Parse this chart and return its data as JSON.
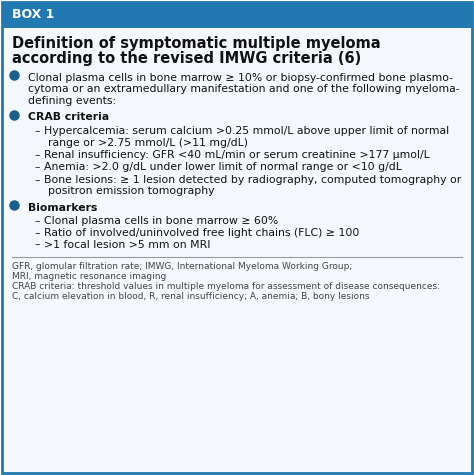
{
  "box_label": "BOX 1",
  "header_bg": "#2278B0",
  "header_text_color": "#FFFFFF",
  "box_bg": "#F5F8FC",
  "box_border_color": "#2278B0",
  "title_line1": "Definition of symptomatic multiple myeloma",
  "title_line2": "according to the revised IMWG criteria (6)",
  "title_color": "#111111",
  "bullet_color": "#1A5E8A",
  "dash_color": "#222222",
  "text_color": "#111111",
  "footer_text_color": "#444444",
  "bullet1": "Clonal plasma cells in bone marrow ≥ 10% or biopsy-confirmed bone plasmo-\ncytoma or an extramedullary manifestation and one of the following myeloma-\ndefining events:",
  "bullet2_header": "CRAB criteria",
  "bullet2_items": [
    "Hypercalcemia: serum calcium >0.25 mmol/L above upper limit of normal\n    range or >2.75 mmol/L (>11 mg/dL)",
    "Renal insufficiency: GFR <40 mL/min or serum creatinine >177 μmol/L",
    "Anemia: >2.0 g/dL under lower limit of normal range or <10 g/dL",
    "Bone lesions: ≥ 1 lesion detected by radiography, computed tomography or\n    positron emission tomography"
  ],
  "bullet3_header": "Biomarkers",
  "bullet3_items": [
    "Clonal plasma cells in bone marrow ≥ 60%",
    "Ratio of involved/uninvolved free light chains (FLC) ≥ 100",
    ">1 focal lesion >5 mm on MRI"
  ],
  "footer_lines": [
    "GFR, glomular filtration rate; IMWG, International Myeloma Working Group;",
    "MRI, magnetic resonance imaging",
    "CRAB criteria: threshold values in multiple myeloma for assessment of disease consequences:",
    "C, calcium elevation in blood, R, renal insufficiency; A, anemia; B, bony lesions"
  ]
}
